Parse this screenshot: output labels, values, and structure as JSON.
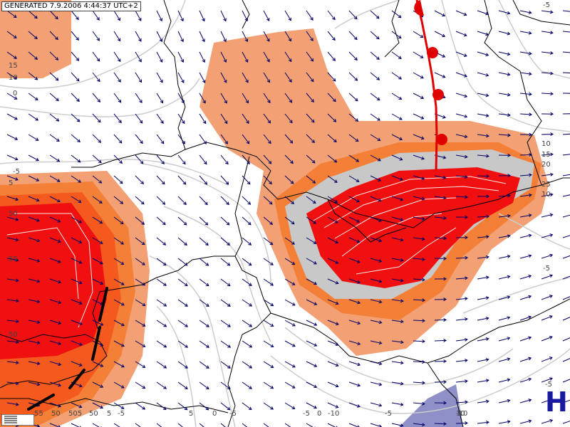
{
  "generated_label": "GENERATED 7.9.2006 4:44:37 UTC+2",
  "pressure_center": {
    "label": "H",
    "color": "#1a1aa0"
  },
  "colors": {
    "field_light": "#f2a074",
    "field_mid": "#f48038",
    "field_orange": "#f45a1e",
    "field_red": "#f01010",
    "band_gray": "#c8c8c8",
    "contour": "#cccccc",
    "borders": "#000000",
    "wind_arrows": "#000066",
    "front": "#e00000",
    "blue_field": "#9090c8"
  },
  "contour_labels": [
    "15",
    "10",
    "0",
    "-5",
    "5",
    "55",
    "50",
    "50",
    "10",
    "15",
    "20",
    "25",
    "10",
    "-5",
    "-5",
    "-10",
    "5",
    "-5",
    "0",
    "-5",
    "-5",
    "-10",
    "0",
    "10",
    "-5",
    "55",
    "50",
    "505",
    "50",
    "5",
    "-5"
  ],
  "icons": [
    "front-symbol",
    "wind-arrow",
    "legend-icon"
  ]
}
